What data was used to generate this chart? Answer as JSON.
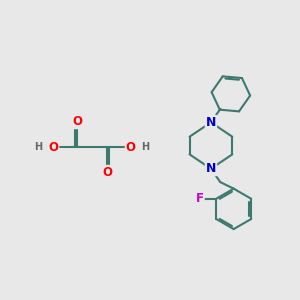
{
  "bg_color": "#e8e8e8",
  "bond_color": "#3d7a6e",
  "bond_width": 1.5,
  "N_color": "#0000cd",
  "O_color": "#ff0000",
  "F_color": "#cc00cc",
  "H_color": "#666666",
  "text_size": 8.5,
  "small_text_size": 7.0,
  "fig_w": 3.0,
  "fig_h": 3.0,
  "dpi": 100,
  "xlim": [
    0,
    10
  ],
  "ylim": [
    0,
    10
  ]
}
